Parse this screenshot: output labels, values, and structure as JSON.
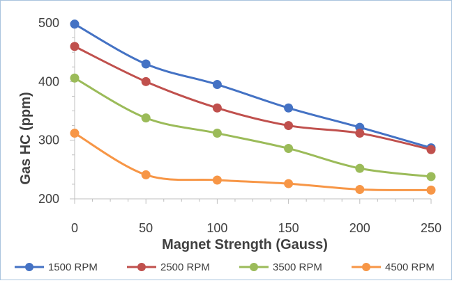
{
  "chart_data": {
    "type": "line",
    "title": "",
    "xlabel": "Magnet Strength (Gauss)",
    "ylabel": "Gas HC (ppm)",
    "x": [
      0,
      50,
      100,
      150,
      200,
      250
    ],
    "x_ticks": [
      "0",
      "50",
      "100",
      "150",
      "200",
      "250"
    ],
    "y_ticks": [
      "200",
      "300",
      "400",
      "500"
    ],
    "xlim": [
      0,
      250
    ],
    "ylim": [
      200,
      500
    ],
    "grid": false,
    "legend_position": "bottom",
    "smoothed": true,
    "series": [
      {
        "name": "1500 RPM",
        "color": "#4472C4",
        "values": [
          498,
          430,
          395,
          355,
          322,
          287
        ]
      },
      {
        "name": "2500 RPM",
        "color": "#C0504D",
        "values": [
          460,
          400,
          355,
          325,
          312,
          284
        ]
      },
      {
        "name": "3500 RPM",
        "color": "#9BBB59",
        "values": [
          406,
          338,
          312,
          286,
          252,
          238
        ]
      },
      {
        "name": "4500 RPM",
        "color": "#F79646",
        "values": [
          312,
          241,
          232,
          226,
          216,
          215
        ]
      }
    ]
  }
}
